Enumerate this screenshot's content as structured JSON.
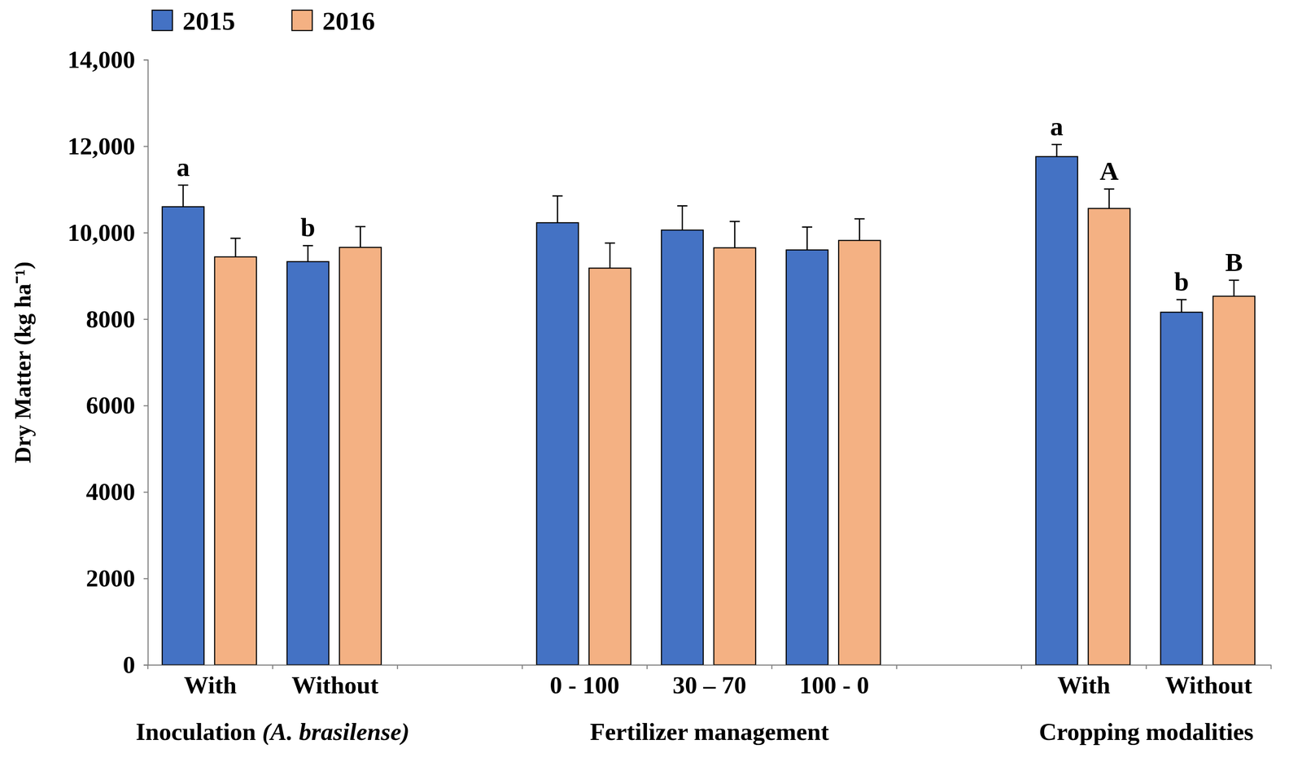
{
  "chart_data": {
    "type": "bar",
    "y_label": "Dry Matter (kg ha⁻¹)",
    "groups": [
      {
        "label": "Inoculation (A. brasilense)",
        "categories": [
          "With",
          "Without"
        ]
      },
      {
        "label": "Fertilizer management",
        "categories": [
          "0 - 100",
          "30 – 70",
          "100 - 0"
        ]
      },
      {
        "label": "Cropping modalities",
        "categories": [
          "With",
          "Without"
        ]
      }
    ],
    "series": [
      {
        "name": "2015",
        "color": "#4472c4",
        "values": [
          10600,
          9330,
          10230,
          10060,
          9600,
          11760,
          8160
        ],
        "errors": [
          500,
          370,
          620,
          560,
          530,
          280,
          290
        ],
        "letters": [
          "a",
          "b",
          null,
          null,
          null,
          "a",
          "b"
        ]
      },
      {
        "name": "2016",
        "color": "#f4b183",
        "values": [
          9440,
          9660,
          9180,
          9650,
          9820,
          10560,
          8530
        ],
        "errors": [
          430,
          480,
          580,
          610,
          500,
          450,
          370
        ],
        "letters": [
          null,
          null,
          null,
          null,
          null,
          "A",
          "B"
        ]
      }
    ],
    "ylim": [
      0,
      14000
    ],
    "yticks": [
      0,
      2000,
      4000,
      6000,
      8000,
      {
        "value": 10000,
        "label": "10,000"
      },
      {
        "value": 12000,
        "label": "12,000"
      },
      {
        "value": 14000,
        "label": "14,000"
      }
    ],
    "legend": "top left",
    "grid": false
  }
}
